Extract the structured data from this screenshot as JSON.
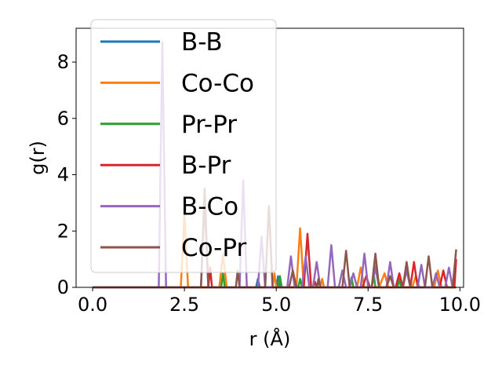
{
  "chart_data": {
    "type": "line",
    "title": "",
    "xlabel": "r (Å)",
    "ylabel": "g(r)",
    "xlim": [
      -0.45,
      10.1
    ],
    "ylim": [
      0,
      9.2
    ],
    "xticks": [
      0.0,
      2.5,
      5.0,
      7.5,
      10.0
    ],
    "xtick_labels": [
      "0.0",
      "2.5",
      "5.0",
      "7.5",
      "10.0"
    ],
    "yticks": [
      0,
      2,
      4,
      6,
      8
    ],
    "ytick_labels": [
      "0",
      "2",
      "4",
      "6",
      "8"
    ],
    "grid": false,
    "legend_position": "top-left",
    "series": [
      {
        "name": "B-B",
        "color": "#1f77b4",
        "points": [
          [
            0,
            0
          ],
          [
            4.45,
            0
          ],
          [
            4.5,
            0.3
          ],
          [
            4.55,
            0
          ],
          [
            5.0,
            0
          ],
          [
            5.05,
            0.4
          ],
          [
            5.1,
            0
          ],
          [
            7.0,
            0
          ],
          [
            7.05,
            0.35
          ],
          [
            7.1,
            0
          ],
          [
            9.9,
            0
          ]
        ]
      },
      {
        "name": "Co-Co",
        "color": "#ff7f0e",
        "points": [
          [
            0,
            0
          ],
          [
            2.4,
            0
          ],
          [
            2.5,
            2.6
          ],
          [
            2.6,
            0
          ],
          [
            3.45,
            0
          ],
          [
            3.55,
            1.2
          ],
          [
            3.65,
            0
          ],
          [
            4.9,
            0
          ],
          [
            4.95,
            0.5
          ],
          [
            5.0,
            0
          ],
          [
            5.55,
            0
          ],
          [
            5.65,
            2.1
          ],
          [
            5.75,
            0
          ],
          [
            6.2,
            0
          ],
          [
            6.25,
            0.3
          ],
          [
            6.3,
            0
          ],
          [
            7.2,
            0
          ],
          [
            7.3,
            0.7
          ],
          [
            7.4,
            0
          ],
          [
            7.6,
            0
          ],
          [
            7.7,
            0.8
          ],
          [
            7.8,
            0
          ],
          [
            7.95,
            0.5
          ],
          [
            8.05,
            0
          ],
          [
            8.7,
            0
          ],
          [
            8.8,
            0.4
          ],
          [
            8.9,
            0
          ],
          [
            9.3,
            0
          ],
          [
            9.4,
            0.6
          ],
          [
            9.5,
            0
          ],
          [
            9.9,
            0
          ]
        ]
      },
      {
        "name": "Pr-Pr",
        "color": "#2ca02c",
        "points": [
          [
            0,
            0
          ],
          [
            3.5,
            0
          ],
          [
            3.55,
            0.5
          ],
          [
            3.6,
            0
          ],
          [
            5.05,
            0
          ],
          [
            5.1,
            0.4
          ],
          [
            5.15,
            0
          ],
          [
            5.6,
            0
          ],
          [
            5.65,
            0.3
          ],
          [
            5.7,
            0
          ],
          [
            6.1,
            0
          ],
          [
            6.15,
            0.2
          ],
          [
            6.2,
            0
          ],
          [
            7.0,
            0
          ],
          [
            7.05,
            0.3
          ],
          [
            7.1,
            0
          ],
          [
            7.6,
            0
          ],
          [
            7.65,
            0.5
          ],
          [
            7.7,
            0
          ],
          [
            8.3,
            0
          ],
          [
            8.35,
            0.3
          ],
          [
            8.4,
            0
          ],
          [
            9.9,
            0
          ]
        ]
      },
      {
        "name": "B-Pr",
        "color": "#d62728",
        "points": [
          [
            0,
            0
          ],
          [
            3.15,
            0
          ],
          [
            3.2,
            0.7
          ],
          [
            3.25,
            0
          ],
          [
            5.75,
            0
          ],
          [
            5.85,
            1.9
          ],
          [
            5.95,
            0
          ],
          [
            6.0,
            0
          ],
          [
            6.05,
            0.2
          ],
          [
            6.1,
            0
          ],
          [
            7.35,
            0
          ],
          [
            7.45,
            0.4
          ],
          [
            7.55,
            0
          ],
          [
            8.25,
            0
          ],
          [
            8.35,
            0.5
          ],
          [
            8.45,
            0
          ],
          [
            8.65,
            0
          ],
          [
            8.75,
            0.9
          ],
          [
            8.85,
            0
          ],
          [
            9.45,
            0
          ],
          [
            9.55,
            0.6
          ],
          [
            9.65,
            0
          ],
          [
            9.85,
            0
          ],
          [
            9.9,
            1.0
          ]
        ]
      },
      {
        "name": "B-Co",
        "color": "#9467bd",
        "points": [
          [
            0,
            0
          ],
          [
            1.8,
            0
          ],
          [
            1.9,
            8.7
          ],
          [
            2.0,
            0
          ],
          [
            2.95,
            0
          ],
          [
            3.05,
            3.0
          ],
          [
            3.15,
            0
          ],
          [
            4.0,
            0
          ],
          [
            4.1,
            3.8
          ],
          [
            4.2,
            0
          ],
          [
            4.5,
            0
          ],
          [
            4.6,
            1.8
          ],
          [
            4.7,
            0
          ],
          [
            5.3,
            0
          ],
          [
            5.4,
            1.1
          ],
          [
            5.5,
            0
          ],
          [
            5.7,
            0
          ],
          [
            5.8,
            1.1
          ],
          [
            5.9,
            0
          ],
          [
            6.0,
            0
          ],
          [
            6.1,
            0.9
          ],
          [
            6.2,
            0
          ],
          [
            6.4,
            0
          ],
          [
            6.5,
            1.5
          ],
          [
            6.6,
            0
          ],
          [
            6.7,
            0
          ],
          [
            6.8,
            0.6
          ],
          [
            6.9,
            0
          ],
          [
            7.0,
            0
          ],
          [
            7.1,
            0.5
          ],
          [
            7.2,
            0
          ],
          [
            7.3,
            0
          ],
          [
            7.4,
            1.2
          ],
          [
            7.5,
            0
          ],
          [
            7.6,
            0
          ],
          [
            7.7,
            0.7
          ],
          [
            7.8,
            0
          ],
          [
            8.0,
            0
          ],
          [
            8.1,
            0.9
          ],
          [
            8.2,
            0
          ],
          [
            8.45,
            0
          ],
          [
            8.55,
            0.6
          ],
          [
            8.65,
            0
          ],
          [
            8.85,
            0
          ],
          [
            8.95,
            0.8
          ],
          [
            9.05,
            0
          ],
          [
            9.25,
            0
          ],
          [
            9.35,
            0.5
          ],
          [
            9.45,
            0
          ],
          [
            9.6,
            0
          ],
          [
            9.7,
            0.7
          ],
          [
            9.8,
            0
          ]
        ]
      },
      {
        "name": "Co-Pr",
        "color": "#8c564b",
        "points": [
          [
            0,
            0
          ],
          [
            2.95,
            0
          ],
          [
            3.05,
            3.5
          ],
          [
            3.15,
            0
          ],
          [
            3.9,
            0
          ],
          [
            3.95,
            0.6
          ],
          [
            4.0,
            0
          ],
          [
            4.7,
            0
          ],
          [
            4.8,
            2.9
          ],
          [
            4.9,
            0
          ],
          [
            5.35,
            0
          ],
          [
            5.45,
            0.6
          ],
          [
            5.55,
            0
          ],
          [
            6.1,
            0
          ],
          [
            6.15,
            0.3
          ],
          [
            6.2,
            0
          ],
          [
            6.8,
            0
          ],
          [
            6.9,
            1.3
          ],
          [
            7.0,
            0
          ],
          [
            7.6,
            0
          ],
          [
            7.7,
            1.2
          ],
          [
            7.8,
            0
          ],
          [
            8.0,
            0
          ],
          [
            8.1,
            0.4
          ],
          [
            8.2,
            0
          ],
          [
            8.45,
            0
          ],
          [
            8.55,
            0.9
          ],
          [
            8.65,
            0
          ],
          [
            9.05,
            0
          ],
          [
            9.15,
            1.1
          ],
          [
            9.25,
            0
          ],
          [
            9.8,
            0
          ],
          [
            9.9,
            1.35
          ]
        ]
      }
    ]
  }
}
